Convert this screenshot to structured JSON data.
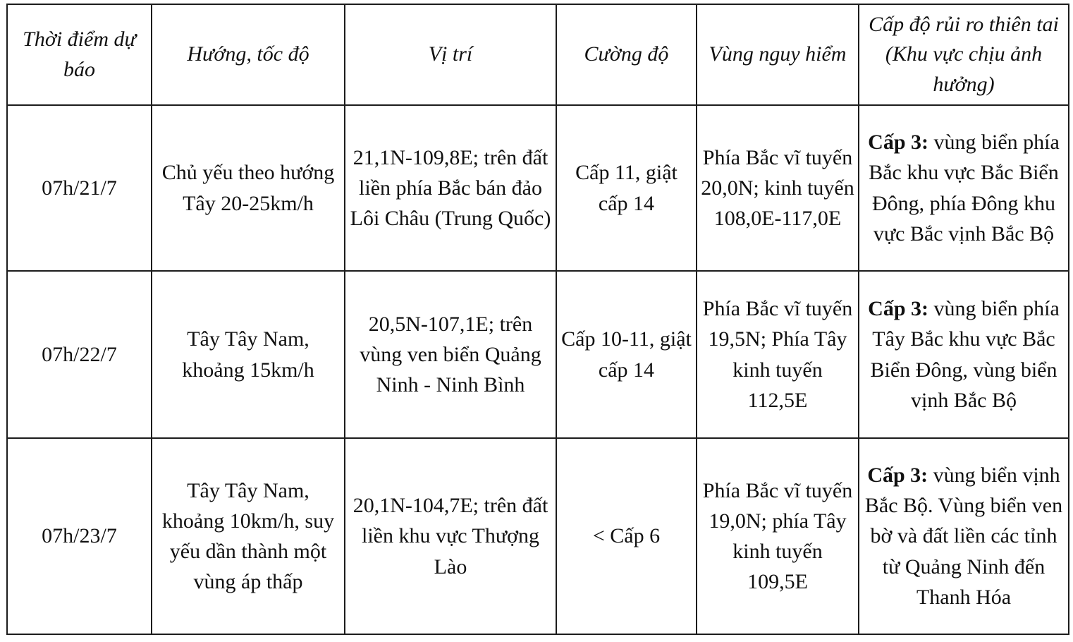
{
  "table": {
    "headers": [
      "Thời điểm dự báo",
      "Hướng, tốc độ",
      "Vị trí",
      "Cường độ",
      "Vùng nguy hiểm",
      "Cấp độ rủi ro thiên tai (Khu vực chịu ảnh hưởng)"
    ],
    "rows": [
      {
        "time": "07h/21/7",
        "direction": "Chủ yếu theo hướng Tây 20-25km/h",
        "position": "21,1N-109,8E; trên đất liền phía Bắc bán đảo Lôi Châu (Trung Quốc)",
        "intensity": "Cấp 11, giật cấp 14",
        "danger_zone": "Phía Bắc vĩ tuyến 20,0N; kinh tuyến 108,0E-117,0E",
        "risk_prefix": "Cấp 3:",
        "risk_text": " vùng biển phía Bắc khu vực Bắc Biển Đông, phía Đông khu vực Bắc vịnh Bắc Bộ"
      },
      {
        "time": "07h/22/7",
        "direction": "Tây Tây Nam, khoảng 15km/h",
        "position": "20,5N-107,1E; trên vùng ven biển Quảng Ninh - Ninh Bình",
        "intensity": "Cấp 10-11, giật cấp 14",
        "danger_zone": "Phía Bắc vĩ tuyến 19,5N; Phía Tây kinh tuyến 112,5E",
        "risk_prefix": "Cấp 3:",
        "risk_text": " vùng biển phía Tây Bắc khu vực Bắc Biển Đông, vùng biển vịnh Bắc Bộ"
      },
      {
        "time": "07h/23/7",
        "direction": "Tây Tây Nam, khoảng 10km/h, suy yếu dần thành một vùng áp thấp",
        "position": "20,1N-104,7E; trên đất liền khu vực Thượng Lào",
        "intensity": "< Cấp 6",
        "danger_zone": "Phía Bắc vĩ tuyến 19,0N; phía Tây kinh tuyến 109,5E",
        "risk_prefix": "Cấp 3:",
        "risk_text": " vùng biển vịnh Bắc Bộ. Vùng biển ven bờ và đất liền các tỉnh từ Quảng Ninh đến Thanh Hóa"
      }
    ]
  }
}
